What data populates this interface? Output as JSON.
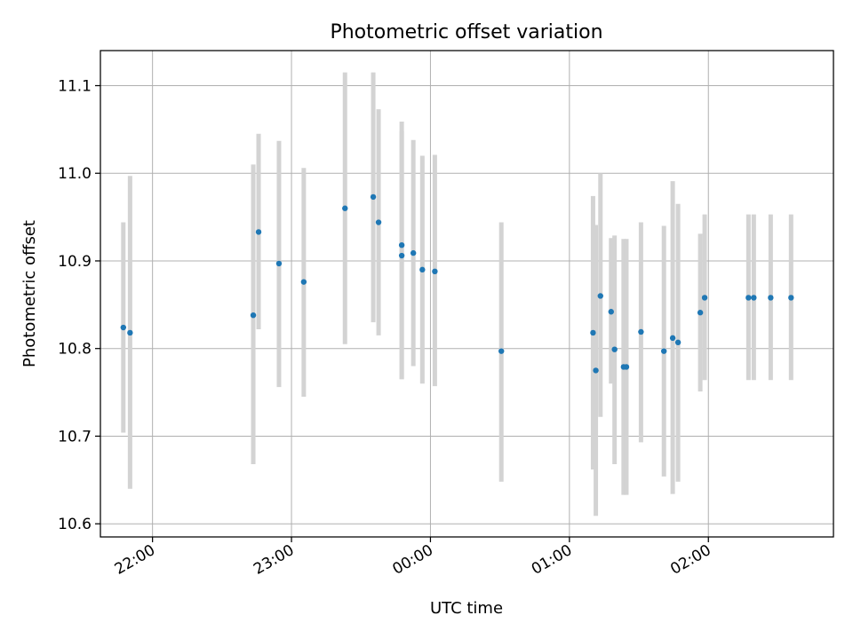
{
  "chart_data": {
    "type": "scatter",
    "title": "Photometric offset variation",
    "xlabel": "UTC time",
    "ylabel": "Photometric offset",
    "x_unit": "minutes after 22:00 UTC",
    "xlim": [
      -22.5,
      294
    ],
    "ylim": [
      10.585,
      11.14
    ],
    "grid": true,
    "marker_color": "#1f77b4",
    "errorbar_color": "#d3d3d3",
    "x_ticks": [
      {
        "value": 0,
        "label": "22:00"
      },
      {
        "value": 60,
        "label": "23:00"
      },
      {
        "value": 120,
        "label": "00:00"
      },
      {
        "value": 180,
        "label": "01:00"
      },
      {
        "value": 240,
        "label": "02:00"
      }
    ],
    "y_ticks": [
      {
        "value": 10.6,
        "label": "10.6"
      },
      {
        "value": 10.7,
        "label": "10.7"
      },
      {
        "value": 10.8,
        "label": "10.8"
      },
      {
        "value": 10.9,
        "label": "10.9"
      },
      {
        "value": 11.0,
        "label": "11.0"
      },
      {
        "value": 11.1,
        "label": "11.1"
      }
    ],
    "points": [
      {
        "x": -12.6,
        "y": 10.824,
        "ylow": 10.704,
        "yhigh": 10.944
      },
      {
        "x": -9.7,
        "y": 10.818,
        "ylow": 10.64,
        "yhigh": 10.997
      },
      {
        "x": 43.5,
        "y": 10.838,
        "ylow": 10.668,
        "yhigh": 11.01
      },
      {
        "x": 45.8,
        "y": 10.933,
        "ylow": 10.822,
        "yhigh": 11.045
      },
      {
        "x": 54.6,
        "y": 10.897,
        "ylow": 10.756,
        "yhigh": 11.037
      },
      {
        "x": 65.3,
        "y": 10.876,
        "ylow": 10.745,
        "yhigh": 11.006
      },
      {
        "x": 83.1,
        "y": 10.96,
        "ylow": 10.805,
        "yhigh": 11.115
      },
      {
        "x": 95.3,
        "y": 10.973,
        "ylow": 10.83,
        "yhigh": 11.115
      },
      {
        "x": 97.6,
        "y": 10.944,
        "ylow": 10.815,
        "yhigh": 11.073
      },
      {
        "x": 107.6,
        "y": 10.918,
        "ylow": 10.765,
        "yhigh": 11.059
      },
      {
        "x": 107.6,
        "y": 10.906,
        "ylow": 10.765,
        "yhigh": 11.048
      },
      {
        "x": 112.6,
        "y": 10.909,
        "ylow": 10.78,
        "yhigh": 11.038
      },
      {
        "x": 116.5,
        "y": 10.89,
        "ylow": 10.76,
        "yhigh": 11.02
      },
      {
        "x": 121.9,
        "y": 10.888,
        "ylow": 10.757,
        "yhigh": 11.021
      },
      {
        "x": 150.6,
        "y": 10.797,
        "ylow": 10.648,
        "yhigh": 10.944
      },
      {
        "x": 190.2,
        "y": 10.818,
        "ylow": 10.662,
        "yhigh": 10.974
      },
      {
        "x": 191.4,
        "y": 10.775,
        "ylow": 10.609,
        "yhigh": 10.941
      },
      {
        "x": 193.4,
        "y": 10.86,
        "ylow": 10.722,
        "yhigh": 11.0
      },
      {
        "x": 198.0,
        "y": 10.842,
        "ylow": 10.76,
        "yhigh": 10.926
      },
      {
        "x": 199.5,
        "y": 10.799,
        "ylow": 10.668,
        "yhigh": 10.929
      },
      {
        "x": 203.4,
        "y": 10.779,
        "ylow": 10.633,
        "yhigh": 10.925
      },
      {
        "x": 204.6,
        "y": 10.779,
        "ylow": 10.633,
        "yhigh": 10.925
      },
      {
        "x": 210.9,
        "y": 10.819,
        "ylow": 10.693,
        "yhigh": 10.944
      },
      {
        "x": 220.8,
        "y": 10.797,
        "ylow": 10.654,
        "yhigh": 10.94
      },
      {
        "x": 224.6,
        "y": 10.812,
        "ylow": 10.634,
        "yhigh": 10.991
      },
      {
        "x": 226.9,
        "y": 10.807,
        "ylow": 10.648,
        "yhigh": 10.965
      },
      {
        "x": 236.5,
        "y": 10.841,
        "ylow": 10.751,
        "yhigh": 10.931
      },
      {
        "x": 238.4,
        "y": 10.858,
        "ylow": 10.764,
        "yhigh": 10.953
      },
      {
        "x": 257.3,
        "y": 10.858,
        "ylow": 10.764,
        "yhigh": 10.953
      },
      {
        "x": 259.6,
        "y": 10.858,
        "ylow": 10.764,
        "yhigh": 10.953
      },
      {
        "x": 266.9,
        "y": 10.858,
        "ylow": 10.764,
        "yhigh": 10.953
      },
      {
        "x": 275.7,
        "y": 10.858,
        "ylow": 10.764,
        "yhigh": 10.953
      }
    ]
  }
}
